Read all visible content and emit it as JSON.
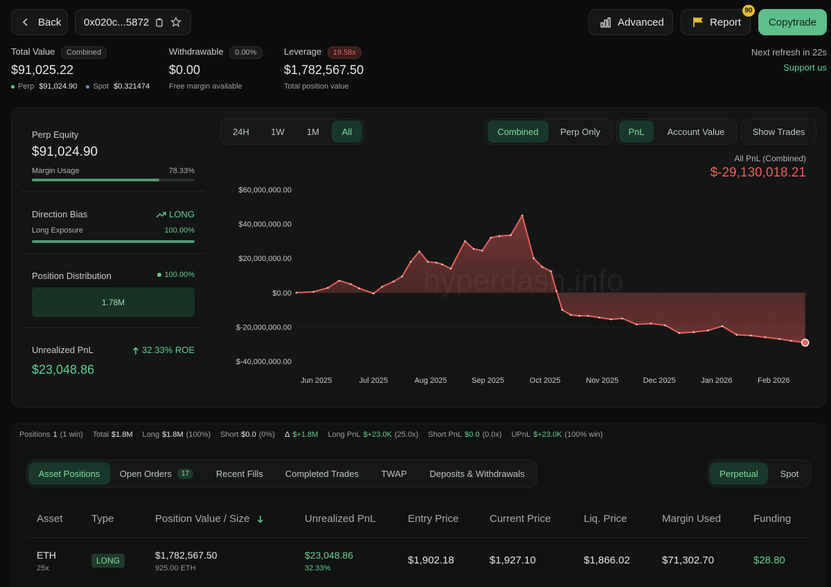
{
  "header": {
    "back_label": "Back",
    "address": "0x020c...5872",
    "advanced_label": "Advanced",
    "report_label": "Report",
    "report_badge": "90",
    "copytrade_label": "Copytrade"
  },
  "summary": {
    "total_value_label": "Total Value",
    "total_value_chip": "Combined",
    "total_value": "$91,025.22",
    "perp_label": "Perp",
    "perp_value": "$91,024.90",
    "spot_label": "Spot",
    "spot_value": "$0.321474",
    "withdrawable_label": "Withdrawable",
    "withdrawable_chip": "0.00%",
    "withdrawable_value": "$0.00",
    "withdrawable_sub": "Free margin available",
    "leverage_label": "Leverage",
    "leverage_chip": "19.58x",
    "leverage_value": "$1,782,567.50",
    "leverage_sub": "Total position value",
    "refresh_text": "Next refresh in 22s",
    "support_text": "Support us"
  },
  "left_panel": {
    "perp_equity_label": "Perp Equity",
    "perp_equity_value": "$91,024.90",
    "margin_usage_label": "Margin Usage",
    "margin_usage_value": "78.33%",
    "margin_usage_fraction": 0.7833,
    "direction_bias_label": "Direction Bias",
    "direction_bias_value": "LONG",
    "long_exposure_label": "Long Exposure",
    "long_exposure_value": "100.00%",
    "long_exposure_fraction": 1.0,
    "position_distribution_label": "Position Distribution",
    "position_distribution_value": "100.00%",
    "position_distribution_bar": "1.78M",
    "unrealized_pnl_label": "Unrealized PnL",
    "unrealized_roe": "32.33% ROE",
    "unrealized_pnl_value": "$23,048.86"
  },
  "chart_controls": {
    "ranges": [
      "24H",
      "1W",
      "1M",
      "All"
    ],
    "active_range": "All",
    "modes": [
      "Combined",
      "Perp Only"
    ],
    "active_mode": "Combined",
    "metrics": [
      "PnL",
      "Account Value"
    ],
    "active_metric": "PnL",
    "show_trades_label": "Show Trades",
    "pnl_title": "All PnL (Combined)",
    "pnl_value": "$-29,130,018.21"
  },
  "chart_data": {
    "type": "area",
    "title": "All PnL (Combined)",
    "watermark": "hyperdash.info",
    "y_ticks": [
      "$60,000,000.00",
      "$40,000,000.00",
      "$20,000,000.00",
      "$0.00",
      "$-20,000,000.00",
      "$-40,000,000.00"
    ],
    "y_tick_values": [
      60000000,
      40000000,
      20000000,
      0,
      -20000000,
      -40000000
    ],
    "x_ticks": [
      "Jun 2025",
      "Jul 2025",
      "Aug 2025",
      "Sep 2025",
      "Oct 2025",
      "Nov 2025",
      "Dec 2025",
      "Jan 2026",
      "Feb 2026"
    ],
    "ylim": [
      -40000000,
      60000000
    ],
    "xlim": [
      0,
      9
    ],
    "series": [
      {
        "color": "#e8615a",
        "x": [
          0,
          0.3,
          0.55,
          0.75,
          0.95,
          1.1,
          1.35,
          1.5,
          1.7,
          1.85,
          2.0,
          2.15,
          2.3,
          2.45,
          2.55,
          2.7,
          2.95,
          3.1,
          3.25,
          3.4,
          3.55,
          3.75,
          3.95,
          4.15,
          4.3,
          4.45,
          4.55,
          4.65,
          4.8,
          4.95,
          5.1,
          5.3,
          5.5,
          5.7,
          5.95,
          6.2,
          6.45,
          6.7,
          6.95,
          7.2,
          7.45,
          7.7,
          7.95,
          8.2,
          8.45,
          8.65,
          8.9
        ],
        "y": [
          0,
          500000,
          2800000,
          7000000,
          5000000,
          2500000,
          -500000,
          3500000,
          6500000,
          9500000,
          18000000,
          24000000,
          18000000,
          17500000,
          16500000,
          14000000,
          30000000,
          25500000,
          24500000,
          32000000,
          33000000,
          33500000,
          45000000,
          20000000,
          15000000,
          12500000,
          1000000,
          -10000000,
          -13000000,
          -13500000,
          -13500000,
          -14500000,
          -15500000,
          -15000000,
          -18500000,
          -18000000,
          -19000000,
          -23500000,
          -23000000,
          -22000000,
          -19500000,
          -24500000,
          -25000000,
          -26000000,
          -27000000,
          -28000000,
          -29130018
        ]
      }
    ]
  },
  "stats": {
    "positions_label": "Positions",
    "positions_value": "1",
    "positions_sub": "(1 win)",
    "total_label": "Total",
    "total_value": "$1.8M",
    "long_label": "Long",
    "long_value": "$1.8M",
    "long_sub": "(100%)",
    "short_label": "Short",
    "short_value": "$0.0",
    "short_sub": "(0%)",
    "delta_label": "Δ",
    "delta_value": "$+1.8M",
    "long_pnl_label": "Long PnL",
    "long_pnl_value": "$+23.0K",
    "long_pnl_sub": "(25.0x)",
    "short_pnl_label": "Short PnL",
    "short_pnl_value": "$0.0",
    "short_pnl_sub": "(0.0x)",
    "upnl_label": "UPnL",
    "upnl_value": "$+23.0K",
    "upnl_sub": "(100% win)"
  },
  "tabs": {
    "items": [
      "Asset Positions",
      "Open Orders",
      "Recent Fills",
      "Completed Trades",
      "TWAP",
      "Deposits & Withdrawals"
    ],
    "active": "Asset Positions",
    "open_orders_count": "17",
    "market_types": [
      "Perpetual",
      "Spot"
    ],
    "active_market": "Perpetual"
  },
  "table": {
    "columns": [
      "Asset",
      "Type",
      "Position Value / Size",
      "Unrealized PnL",
      "Entry Price",
      "Current Price",
      "Liq. Price",
      "Margin Used",
      "Funding"
    ],
    "rows": [
      {
        "asset": "ETH",
        "leverage": "25x",
        "type": "LONG",
        "position_value": "$1,782,567.50",
        "size": "925.00 ETH",
        "unrealized_pnl": "$23,048.86",
        "unrealized_pct": "32.33%",
        "entry_price": "$1,902.18",
        "current_price": "$1,927.10",
        "liq_price": "$1,866.02",
        "margin_used": "$71,302.70",
        "funding": "$28.80"
      }
    ]
  },
  "colors": {
    "accent_green": "#5fcf8f",
    "loss_red": "#e8615a",
    "copytrade_bg": "#5fbf8b",
    "badge_yellow": "#e8b93a"
  },
  "icons": {
    "back": "chevron-left-icon",
    "copy": "copy-icon",
    "star": "star-icon",
    "advanced": "bar-chart-icon",
    "report": "flag-icon",
    "trend": "trend-up-icon",
    "arrow_up": "arrow-up-icon",
    "sort": "arrow-down-icon"
  }
}
